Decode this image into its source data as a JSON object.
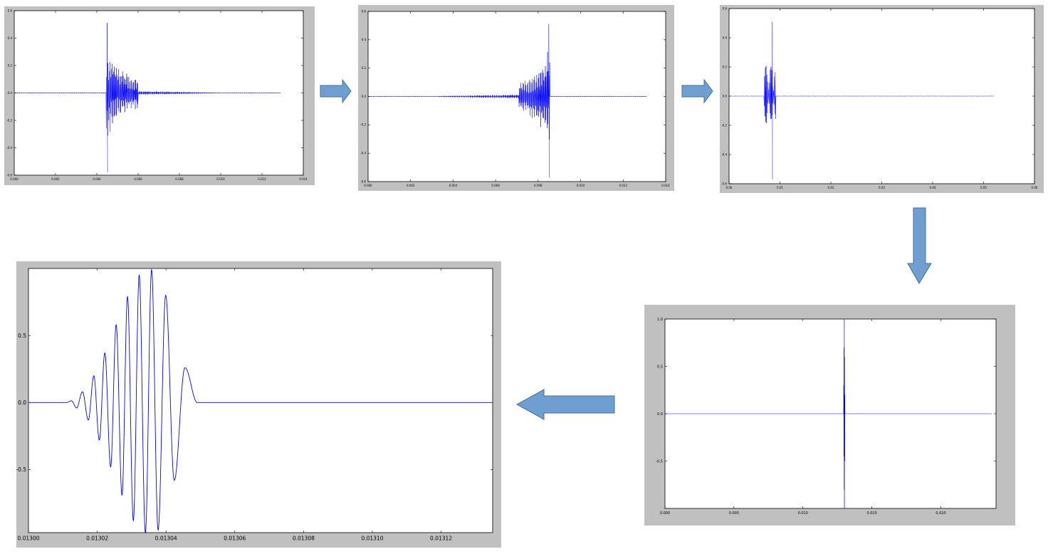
{
  "colors": {
    "frame": "#c0c0c0",
    "plot_bg": "#ffffff",
    "line": "#0000ff",
    "arrow_fill": "#6f9fd0",
    "arrow_stroke": "#3f6fa8"
  },
  "arrows": [
    {
      "direction": "right",
      "icon": "right-arrow-icon"
    },
    {
      "direction": "right",
      "icon": "right-arrow-icon"
    },
    {
      "direction": "down",
      "icon": "down-arrow-icon"
    },
    {
      "direction": "left",
      "icon": "left-arrow-icon"
    }
  ],
  "chart_data": [
    {
      "type": "line",
      "description": "raw signal",
      "xlim": [
        0.0,
        0.014
      ],
      "ylim": [
        -0.6,
        0.6
      ],
      "xticks": [
        "0.000",
        "0.002",
        "0.004",
        "0.006",
        "0.008",
        "0.010",
        "0.012",
        "0.014"
      ],
      "yticks": [
        "0.6",
        "0.4",
        "0.2",
        "0.0",
        "-0.2",
        "-0.4",
        "-0.6"
      ],
      "grid": false,
      "signal": {
        "x_end": 0.0129,
        "burst_start": 0.00445,
        "burst_end": 0.006,
        "peak_x": 0.0045,
        "peak_max": 0.51,
        "peak_min": -0.58,
        "tail_end": 0.0099
      }
    },
    {
      "type": "line",
      "description": "time-reversed signal",
      "xlim": [
        0.0,
        0.014
      ],
      "ylim": [
        -0.6,
        0.6
      ],
      "xticks": [
        "0.000",
        "0.002",
        "0.004",
        "0.006",
        "0.008",
        "0.010",
        "0.012",
        "0.014"
      ],
      "yticks": [
        "0.6",
        "0.4",
        "0.2",
        "0.0",
        "-0.2",
        "-0.4",
        "-0.6"
      ],
      "grid": false,
      "signal": {
        "x_end": 0.0131,
        "burst_start": 0.0071,
        "burst_end": 0.00855,
        "peak_x": 0.0085,
        "peak_max": 0.51,
        "peak_min": -0.57,
        "tail_start": 0.0031
      }
    },
    {
      "type": "line",
      "description": "longer window",
      "xlim": [
        0.0,
        0.06
      ],
      "ylim": [
        -0.6,
        0.6
      ],
      "xticks": [
        "0.00",
        "0.01",
        "0.02",
        "0.03",
        "0.04",
        "0.05",
        "0.06"
      ],
      "yticks": [
        "0.6",
        "0.4",
        "0.2",
        "0.0",
        "-0.2",
        "-0.4",
        "-0.6"
      ],
      "grid": false,
      "signal": {
        "x_end": 0.052,
        "burst_start": 0.0069,
        "burst_end": 0.0092,
        "peak_x": 0.0085,
        "peak_max": 0.51,
        "peak_min": -0.57
      }
    },
    {
      "type": "line",
      "description": "single impulse",
      "xlim": [
        0.0,
        0.024
      ],
      "ylim": [
        -1.0,
        1.0
      ],
      "xticks": [
        "0.000",
        "0.005",
        "0.010",
        "0.015",
        "0.020"
      ],
      "yticks": [
        "1.0",
        "0.5",
        "0.0",
        "-0.5"
      ],
      "grid": false,
      "signal": {
        "x_end": 0.0237,
        "spike_x": 0.013,
        "spike_max": 1.0,
        "spike_min": -1.0
      }
    },
    {
      "type": "line",
      "description": "zoomed impulse (wavelet)",
      "xlim": [
        0.013,
        0.013135
      ],
      "ylim": [
        -0.97,
        1.0
      ],
      "xticks": [
        "0.01300",
        "0.01302",
        "0.01304",
        "0.01306",
        "0.01308",
        "0.01310",
        "0.01312"
      ],
      "yticks": [
        "0.5",
        "0.0",
        "-0.5"
      ],
      "grid": false,
      "extrema": [
        {
          "x": 0.013011,
          "y": 0.0
        },
        {
          "x": 0.0130125,
          "y": 0.013
        },
        {
          "x": 0.013014,
          "y": -0.04
        },
        {
          "x": 0.0130157,
          "y": 0.08
        },
        {
          "x": 0.0130174,
          "y": -0.13
        },
        {
          "x": 0.013019,
          "y": 0.2
        },
        {
          "x": 0.0130206,
          "y": -0.28
        },
        {
          "x": 0.0130222,
          "y": 0.37
        },
        {
          "x": 0.0130239,
          "y": -0.48
        },
        {
          "x": 0.0130255,
          "y": 0.58
        },
        {
          "x": 0.0130272,
          "y": -0.69
        },
        {
          "x": 0.0130288,
          "y": 0.79
        },
        {
          "x": 0.0130305,
          "y": -0.88
        },
        {
          "x": 0.0130322,
          "y": 0.95
        },
        {
          "x": 0.013034,
          "y": -0.97
        },
        {
          "x": 0.0130358,
          "y": 0.99
        },
        {
          "x": 0.0130377,
          "y": -0.95
        },
        {
          "x": 0.0130399,
          "y": 0.8
        },
        {
          "x": 0.0130424,
          "y": -0.58
        },
        {
          "x": 0.0130455,
          "y": 0.26
        },
        {
          "x": 0.0130491,
          "y": 0.0
        },
        {
          "x": 0.013135,
          "y": 0.0
        }
      ]
    }
  ]
}
